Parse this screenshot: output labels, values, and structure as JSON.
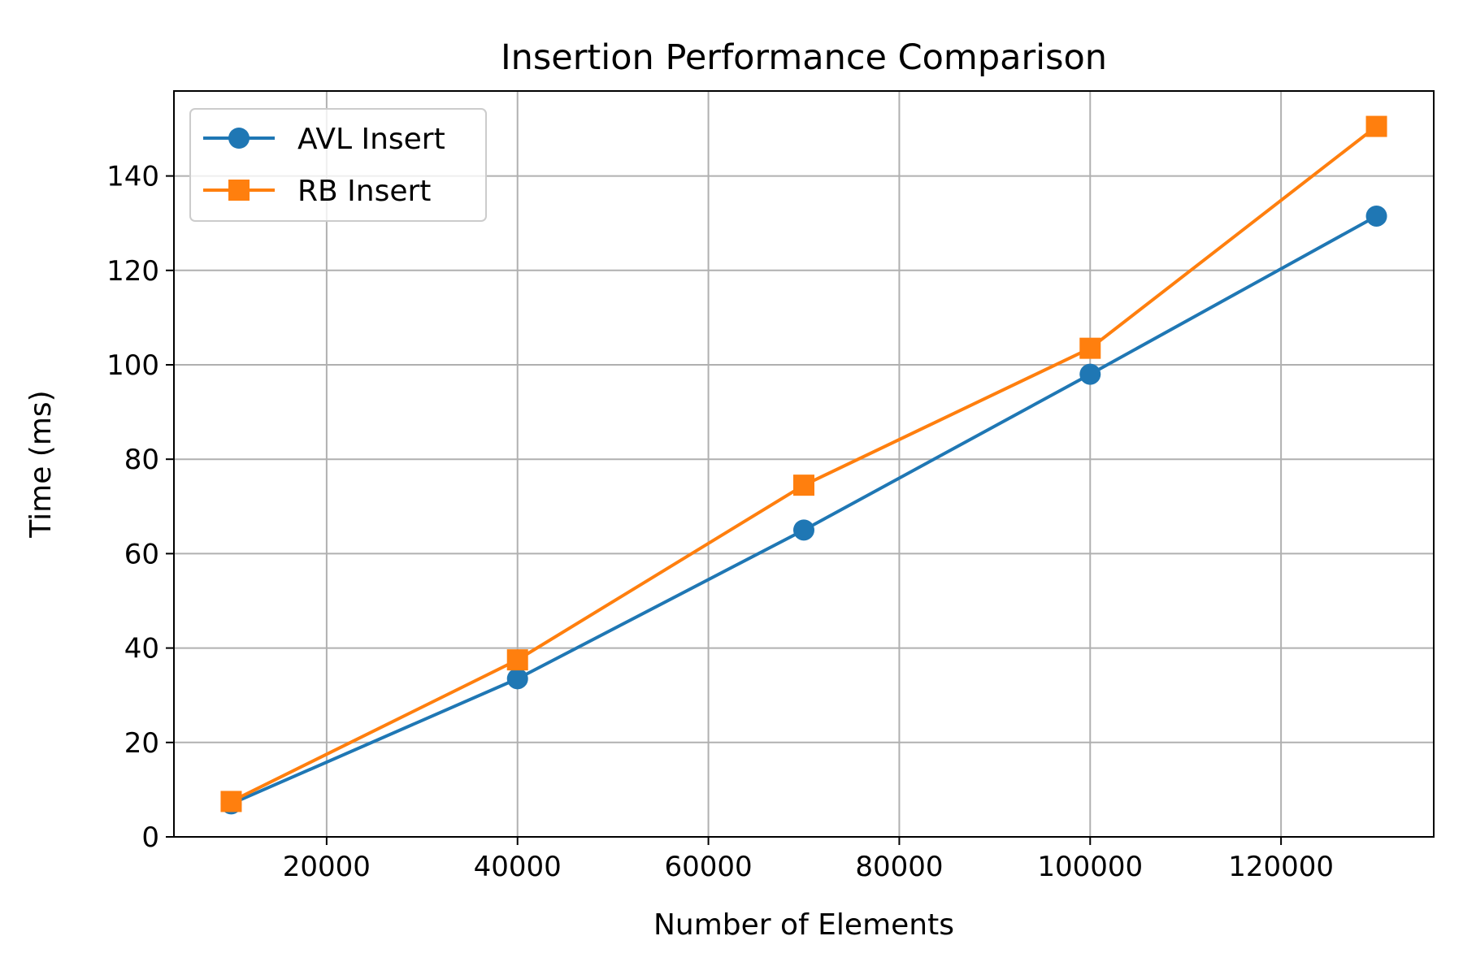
{
  "chart_data": {
    "type": "line",
    "title": "Insertion Performance Comparison",
    "xlabel": "Number of Elements",
    "ylabel": "Time (ms)",
    "x": [
      10000,
      40000,
      70000,
      100000,
      130000
    ],
    "xlim": [
      4000,
      136000
    ],
    "ylim": [
      0,
      158
    ],
    "x_ticks": [
      20000,
      40000,
      60000,
      80000,
      100000,
      120000
    ],
    "y_ticks": [
      0,
      20,
      40,
      60,
      80,
      100,
      120,
      140
    ],
    "grid": true,
    "legend_position": "top-left",
    "series": [
      {
        "name": "AVL Insert",
        "values": [
          7.0,
          33.5,
          65.0,
          98.0,
          131.5
        ],
        "marker": "circle",
        "color": "#1f77b4"
      },
      {
        "name": "RB Insert",
        "values": [
          7.5,
          37.5,
          74.5,
          103.5,
          150.5
        ],
        "marker": "square",
        "color": "#ff7f0e"
      }
    ]
  }
}
